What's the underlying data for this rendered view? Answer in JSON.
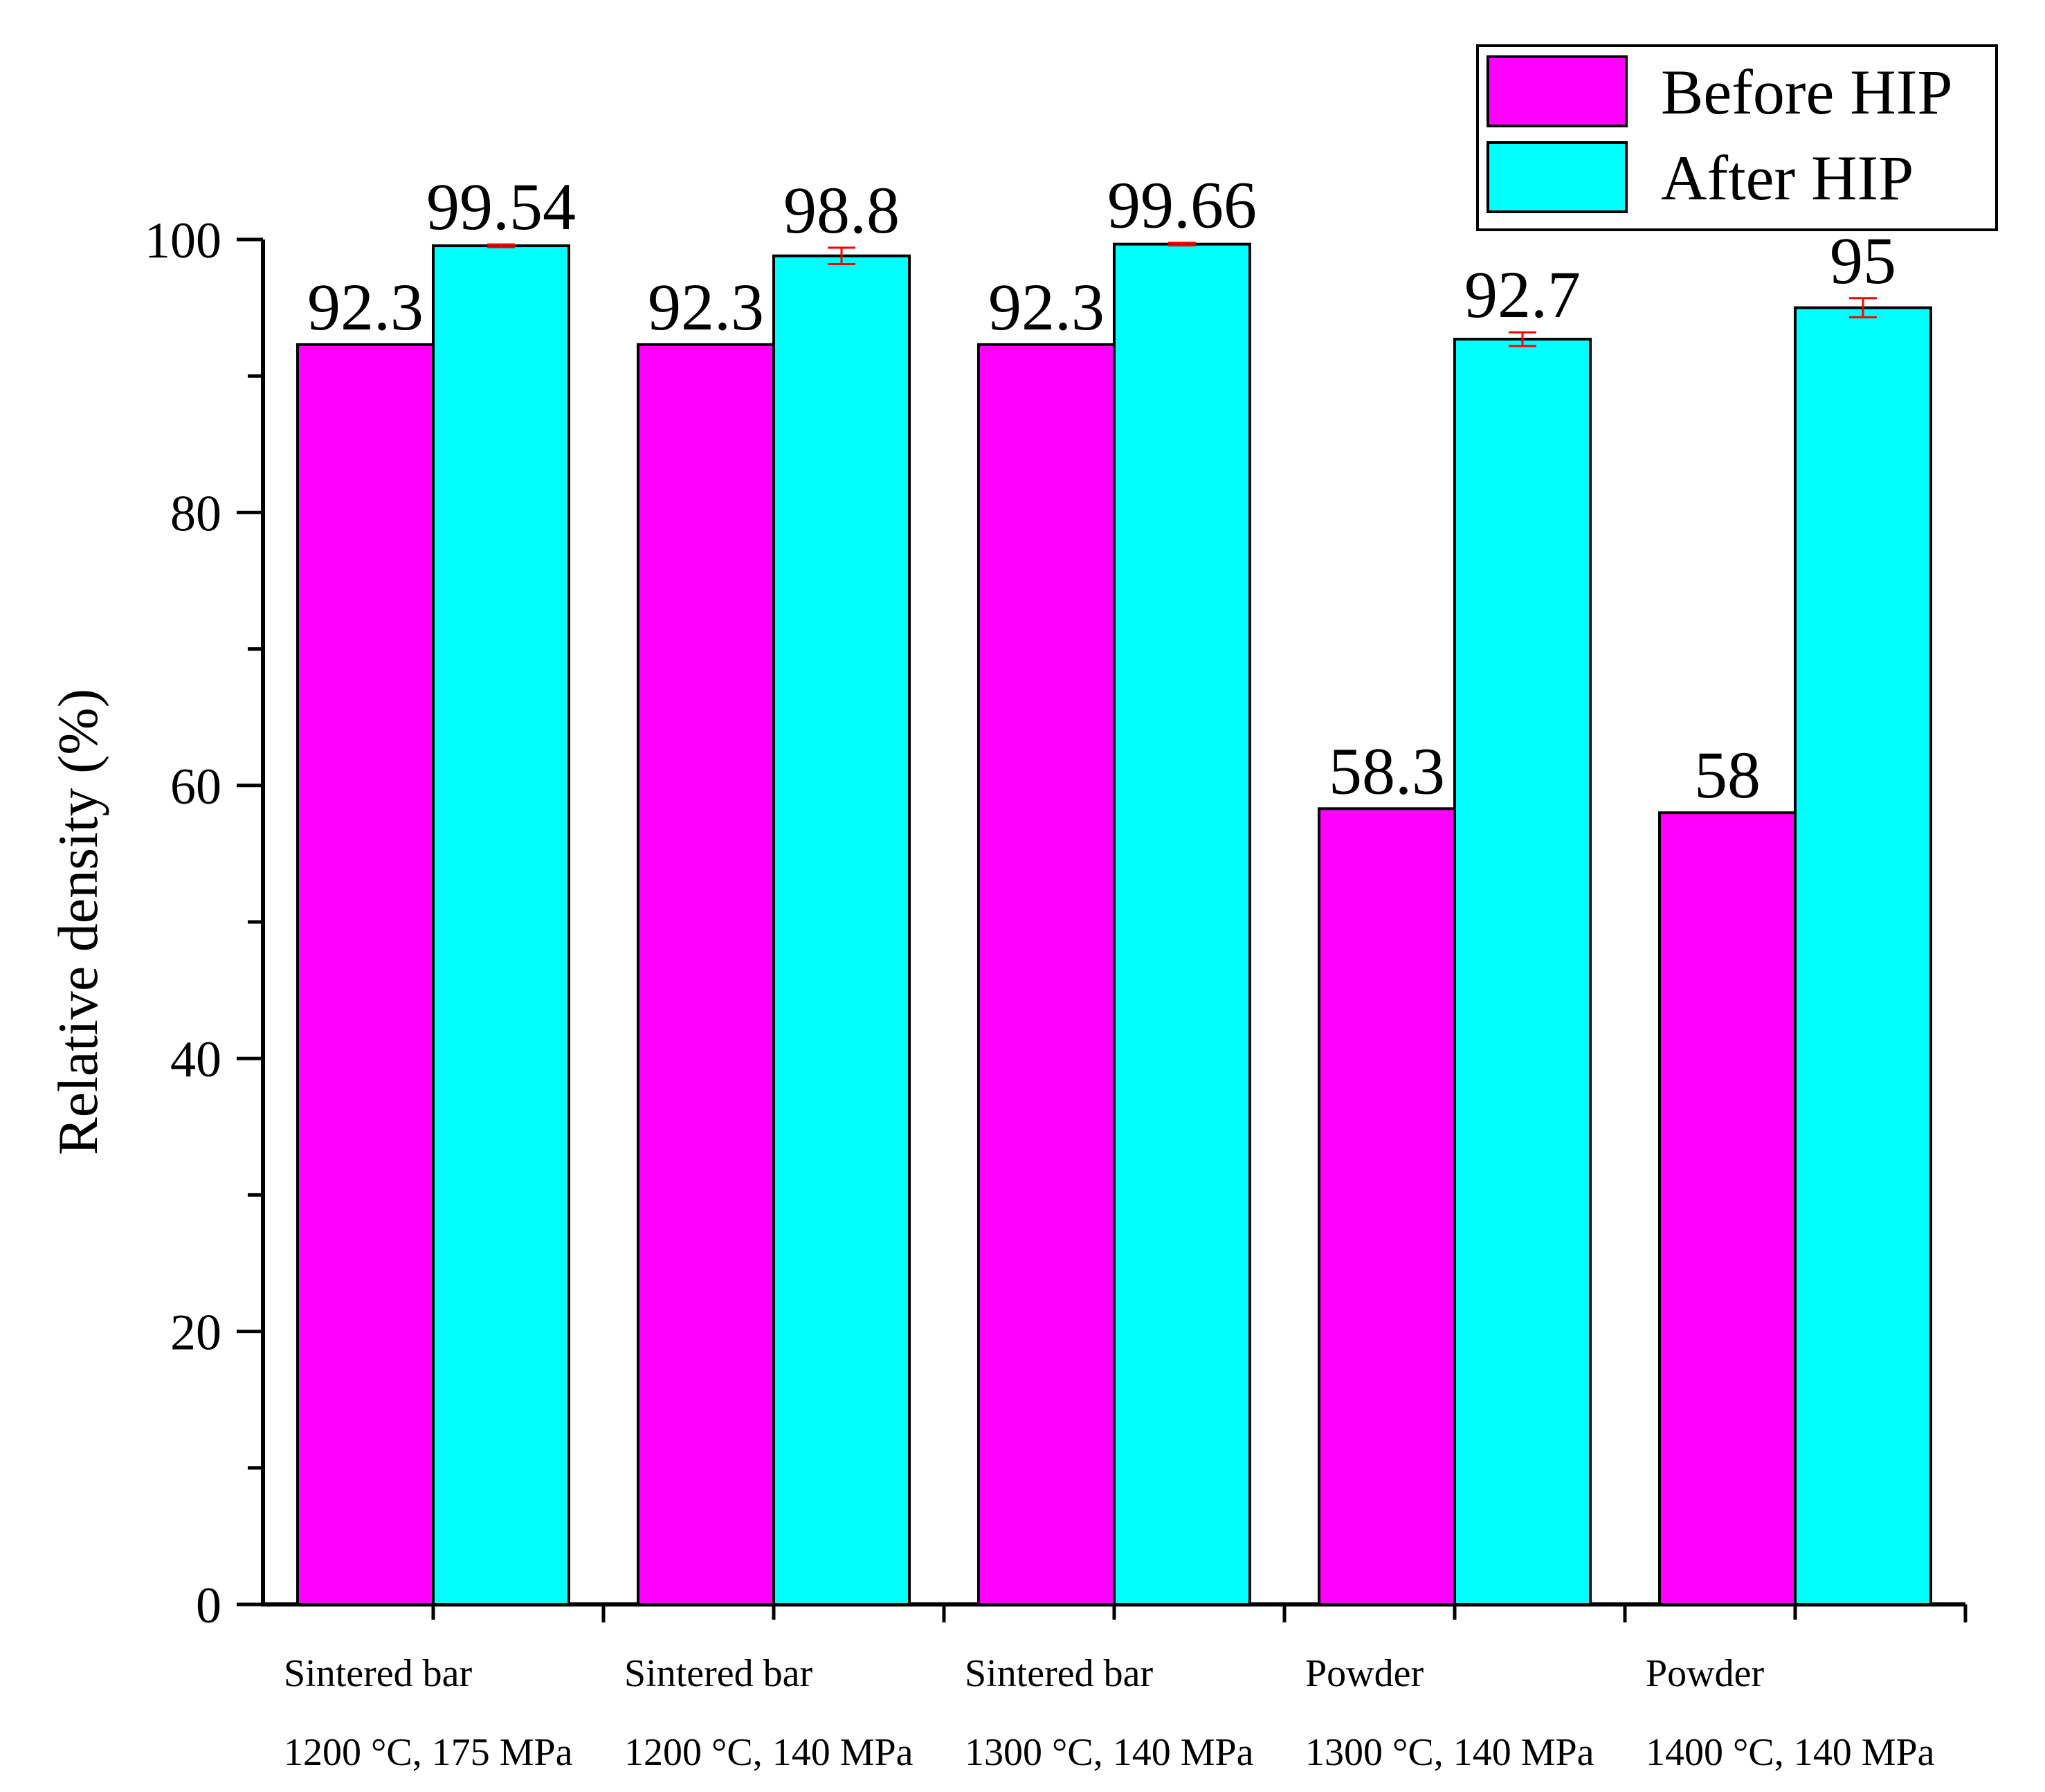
{
  "chart_data": {
    "type": "bar",
    "title": "",
    "xlabel": "",
    "ylabel": "Relative density (%)",
    "ylim": [
      0,
      100
    ],
    "yticks": [
      "0",
      "20",
      "40",
      "60",
      "80",
      "100"
    ],
    "grid": false,
    "legend_position": "top-right",
    "categories": [
      {
        "line1": "Sintered bar",
        "line2": "1200 °C, 175 MPa"
      },
      {
        "line1": "Sintered bar",
        "line2": "1200 °C, 140 MPa"
      },
      {
        "line1": "Sintered bar",
        "line2": "1300 °C, 140 MPa"
      },
      {
        "line1": "Powder",
        "line2": "1300 °C, 140 MPa"
      },
      {
        "line1": "Powder",
        "line2": "1400 °C, 140 MPa"
      }
    ],
    "series": [
      {
        "name": "Before HIP",
        "color": "#ff00ff",
        "values": [
          92.3,
          92.3,
          92.3,
          58.3,
          58
        ],
        "labels": [
          "92.3",
          "92.3",
          "92.3",
          "58.3",
          "58"
        ],
        "errors": [
          0,
          0,
          0,
          0,
          0
        ]
      },
      {
        "name": "After HIP",
        "color": "#00ffff",
        "values": [
          99.54,
          98.8,
          99.66,
          92.7,
          95
        ],
        "labels": [
          "99.54",
          "98.8",
          "99.66",
          "92.7",
          "95"
        ],
        "errors": [
          0.1,
          0.6,
          0.1,
          0.5,
          0.7
        ]
      }
    ],
    "error_bar_color": "#ff0000"
  }
}
